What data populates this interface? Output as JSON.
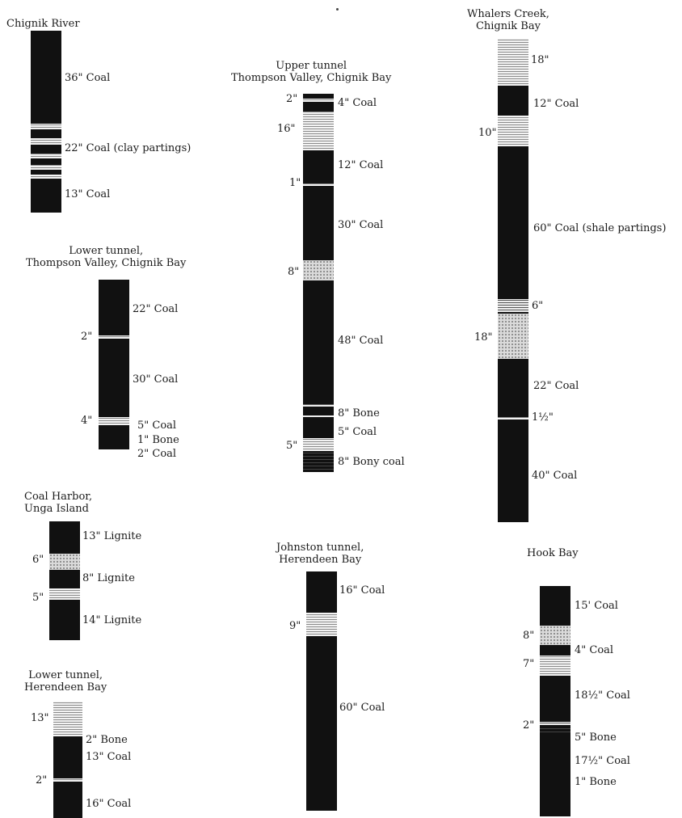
{
  "columns": [
    {
      "id": "chignik-river",
      "title": [
        "Chignik River"
      ],
      "labels": [
        {
          "side": "right",
          "text": "36\" Coal"
        },
        {
          "side": "right",
          "text": "22\" Coal (clay partings)"
        },
        {
          "side": "right",
          "text": "13\" Coal"
        }
      ]
    },
    {
      "id": "lower-tunnel-thompson",
      "title": [
        "Lower tunnel,",
        "Thompson Valley, Chignik Bay"
      ],
      "labels": [
        {
          "side": "right",
          "text": "22\" Coal"
        },
        {
          "side": "left",
          "text": "2\""
        },
        {
          "side": "right",
          "text": "30\" Coal"
        },
        {
          "side": "left",
          "text": "4\""
        },
        {
          "side": "right",
          "text": "5\" Coal"
        },
        {
          "side": "right",
          "text": "1\" Bone"
        },
        {
          "side": "right",
          "text": "2\" Coal"
        }
      ]
    },
    {
      "id": "coal-harbor-unga",
      "title": [
        "Coal Harbor,",
        "Unga Island"
      ],
      "labels": [
        {
          "side": "right",
          "text": "13\" Lignite"
        },
        {
          "side": "left",
          "text": "6\""
        },
        {
          "side": "right",
          "text": "8\" Lignite"
        },
        {
          "side": "left",
          "text": "5\""
        },
        {
          "side": "right",
          "text": "14\" Lignite"
        }
      ]
    },
    {
      "id": "lower-tunnel-herendeen",
      "title": [
        "Lower tunnel,",
        "Herendeen Bay"
      ],
      "labels": [
        {
          "side": "left",
          "text": "13\""
        },
        {
          "side": "right",
          "text": "2\" Bone"
        },
        {
          "side": "right",
          "text": "13\" Coal"
        },
        {
          "side": "left",
          "text": "2\""
        },
        {
          "side": "right",
          "text": "16\" Coal"
        }
      ]
    },
    {
      "id": "upper-tunnel-thompson",
      "title": [
        "Upper tunnel",
        "Thompson Valley, Chignik Bay"
      ],
      "labels": [
        {
          "side": "left",
          "text": "2\""
        },
        {
          "side": "right",
          "text": "4\" Coal"
        },
        {
          "side": "left",
          "text": "16\""
        },
        {
          "side": "right",
          "text": "12\" Coal"
        },
        {
          "side": "left",
          "text": "1\""
        },
        {
          "side": "right",
          "text": "30\" Coal"
        },
        {
          "side": "left",
          "text": "8\""
        },
        {
          "side": "right",
          "text": "48\" Coal"
        },
        {
          "side": "right",
          "text": "8\" Bone"
        },
        {
          "side": "right",
          "text": "5\" Coal"
        },
        {
          "side": "left",
          "text": "5\""
        },
        {
          "side": "right",
          "text": "8\" Bony coal"
        }
      ]
    },
    {
      "id": "johnston-tunnel",
      "title": [
        "Johnston tunnel,",
        "Herendeen Bay"
      ],
      "labels": [
        {
          "side": "right",
          "text": "16\" Coal"
        },
        {
          "side": "left",
          "text": "9\""
        },
        {
          "side": "right",
          "text": "60\" Coal"
        }
      ]
    },
    {
      "id": "whalers-creek",
      "title": [
        "Whalers Creek,",
        "Chignik Bay"
      ],
      "labels": [
        {
          "side": "right",
          "text": "18\""
        },
        {
          "side": "right",
          "text": "12\" Coal"
        },
        {
          "side": "left",
          "text": "10\""
        },
        {
          "side": "right",
          "text": "60\" Coal (shale partings)"
        },
        {
          "side": "right",
          "text": "6\""
        },
        {
          "side": "left",
          "text": "18\""
        },
        {
          "side": "right",
          "text": "22\" Coal"
        },
        {
          "side": "right",
          "text": "1½\""
        },
        {
          "side": "right",
          "text": "40\" Coal"
        }
      ]
    },
    {
      "id": "hook-bay",
      "title": [
        "Hook Bay"
      ],
      "labels": [
        {
          "side": "right",
          "text": "15' Coal"
        },
        {
          "side": "left",
          "text": "8\""
        },
        {
          "side": "right",
          "text": "4\" Coal"
        },
        {
          "side": "left",
          "text": "7\""
        },
        {
          "side": "right",
          "text": "18½\" Coal"
        },
        {
          "side": "left",
          "text": "2\""
        },
        {
          "side": "right",
          "text": "5\" Bone"
        },
        {
          "side": "right",
          "text": "17½\" Coal"
        },
        {
          "side": "right",
          "text": "1\" Bone"
        }
      ]
    }
  ]
}
